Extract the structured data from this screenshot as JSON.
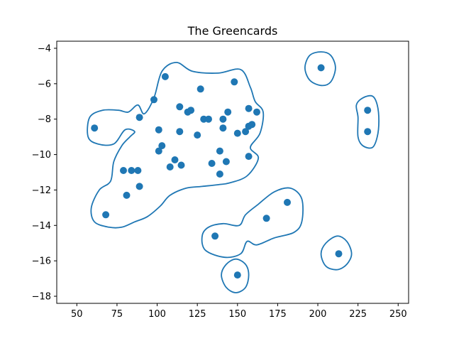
{
  "chart_data": {
    "type": "scatter",
    "title": "The Greencards",
    "xlabel": "",
    "ylabel": "",
    "xlim": [
      37.5,
      256.5
    ],
    "ylim": [
      -18.4,
      -3.6
    ],
    "xticks": [
      50,
      75,
      100,
      125,
      150,
      175,
      200,
      225,
      250
    ],
    "yticks": [
      -4,
      -6,
      -8,
      -10,
      -12,
      -14,
      -16,
      -18
    ],
    "grid": false,
    "marker_color": "#1f77b4",
    "points": [
      [
        105,
        -5.6
      ],
      [
        148,
        -5.9
      ],
      [
        127,
        -6.3
      ],
      [
        98,
        -6.9
      ],
      [
        114,
        -7.3
      ],
      [
        121,
        -7.5
      ],
      [
        119,
        -7.6
      ],
      [
        89,
        -7.9
      ],
      [
        129,
        -8.0
      ],
      [
        132,
        -8.0
      ],
      [
        141,
        -8.0
      ],
      [
        144,
        -7.6
      ],
      [
        157,
        -7.4
      ],
      [
        162,
        -7.6
      ],
      [
        61,
        -8.5
      ],
      [
        101,
        -8.6
      ],
      [
        114,
        -8.7
      ],
      [
        125,
        -8.9
      ],
      [
        141,
        -8.5
      ],
      [
        150,
        -8.8
      ],
      [
        155,
        -8.7
      ],
      [
        157,
        -8.4
      ],
      [
        159,
        -8.3
      ],
      [
        103,
        -9.5
      ],
      [
        101,
        -9.8
      ],
      [
        139,
        -9.8
      ],
      [
        157,
        -10.1
      ],
      [
        111,
        -10.3
      ],
      [
        143,
        -10.4
      ],
      [
        134,
        -10.5
      ],
      [
        108,
        -10.7
      ],
      [
        115,
        -10.6
      ],
      [
        79,
        -10.9
      ],
      [
        84,
        -10.9
      ],
      [
        88,
        -10.9
      ],
      [
        139,
        -11.1
      ],
      [
        89,
        -11.8
      ],
      [
        81,
        -12.3
      ],
      [
        68,
        -13.4
      ],
      [
        181,
        -12.7
      ],
      [
        168,
        -13.6
      ],
      [
        136,
        -14.6
      ],
      [
        202,
        -5.1
      ],
      [
        231,
        -7.5
      ],
      [
        231,
        -8.7
      ],
      [
        213,
        -15.6
      ],
      [
        150,
        -16.8
      ]
    ],
    "contours": [
      [
        [
          88,
          -7.2
        ],
        [
          92,
          -7.7
        ],
        [
          98,
          -6.8
        ],
        [
          103,
          -5.3
        ],
        [
          112,
          -4.8
        ],
        [
          122,
          -5.3
        ],
        [
          138,
          -5.4
        ],
        [
          152,
          -5.2
        ],
        [
          158,
          -6.2
        ],
        [
          161,
          -7.0
        ],
        [
          166,
          -7.6
        ],
        [
          164,
          -8.8
        ],
        [
          158,
          -9.6
        ],
        [
          163,
          -10.2
        ],
        [
          156,
          -11.2
        ],
        [
          145,
          -11.6
        ],
        [
          138,
          -11.7
        ],
        [
          128,
          -11.8
        ],
        [
          118,
          -11.9
        ],
        [
          108,
          -12.3
        ],
        [
          102,
          -12.9
        ],
        [
          94,
          -13.5
        ],
        [
          86,
          -13.8
        ],
        [
          78,
          -14.1
        ],
        [
          70,
          -14.1
        ],
        [
          61,
          -13.8
        ],
        [
          59,
          -13.0
        ],
        [
          64,
          -12.0
        ],
        [
          71,
          -11.5
        ],
        [
          73,
          -10.4
        ],
        [
          78,
          -9.5
        ],
        [
          83,
          -9.0
        ],
        [
          86,
          -8.7
        ],
        [
          80,
          -8.6
        ],
        [
          73,
          -9.4
        ],
        [
          63,
          -9.4
        ],
        [
          57,
          -9.0
        ],
        [
          58,
          -7.9
        ],
        [
          66,
          -7.5
        ],
        [
          76,
          -7.5
        ],
        [
          82,
          -7.6
        ]
      ],
      [
        [
          190,
          -13.8
        ],
        [
          185,
          -14.4
        ],
        [
          173,
          -14.7
        ],
        [
          162,
          -15.1
        ],
        [
          156,
          -14.9
        ],
        [
          152,
          -15.6
        ],
        [
          142,
          -15.8
        ],
        [
          130,
          -15.4
        ],
        [
          128,
          -14.6
        ],
        [
          132,
          -14.1
        ],
        [
          141,
          -13.9
        ],
        [
          151,
          -14.0
        ],
        [
          155,
          -13.4
        ],
        [
          163,
          -12.8
        ],
        [
          173,
          -12.1
        ],
        [
          183,
          -11.9
        ],
        [
          190,
          -12.5
        ]
      ],
      [
        [
          211,
          -5.1
        ],
        [
          208,
          -5.9
        ],
        [
          202,
          -6.1
        ],
        [
          195,
          -5.8
        ],
        [
          192,
          -5.1
        ],
        [
          195,
          -4.4
        ],
        [
          202,
          -4.2
        ],
        [
          208,
          -4.4
        ]
      ],
      [
        [
          238,
          -8.1
        ],
        [
          237,
          -9.0
        ],
        [
          234,
          -9.6
        ],
        [
          228,
          -9.5
        ],
        [
          225,
          -9.0
        ],
        [
          225,
          -7.9
        ],
        [
          224,
          -7.2
        ],
        [
          228,
          -6.8
        ],
        [
          234,
          -6.7
        ],
        [
          237,
          -7.2
        ]
      ],
      [
        [
          221,
          -15.6
        ],
        [
          218,
          -16.2
        ],
        [
          212,
          -16.5
        ],
        [
          205,
          -16.3
        ],
        [
          202,
          -15.6
        ],
        [
          205,
          -15.0
        ],
        [
          212,
          -14.6
        ],
        [
          218,
          -14.9
        ]
      ],
      [
        [
          157,
          -16.8
        ],
        [
          155,
          -17.5
        ],
        [
          149,
          -17.8
        ],
        [
          143,
          -17.5
        ],
        [
          140,
          -16.8
        ],
        [
          143,
          -16.2
        ],
        [
          149,
          -15.9
        ],
        [
          155,
          -16.2
        ]
      ]
    ]
  }
}
